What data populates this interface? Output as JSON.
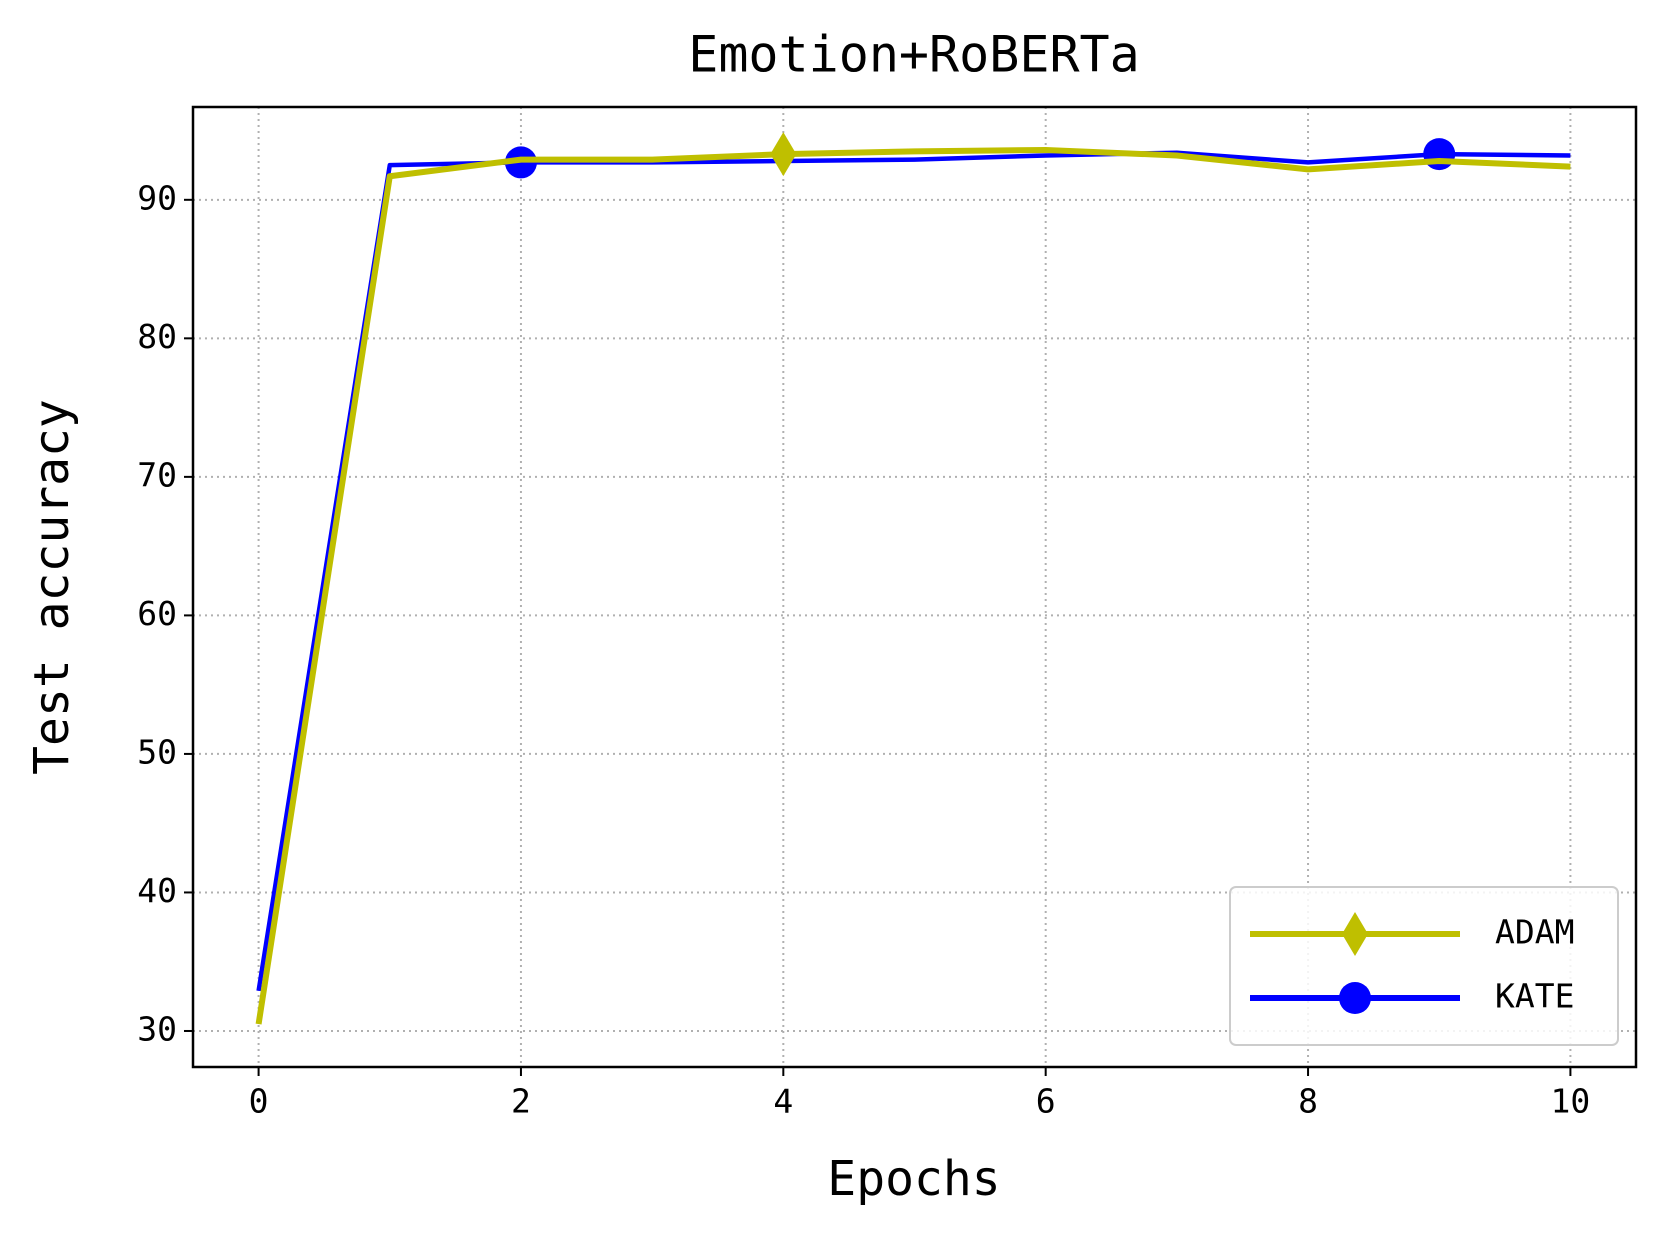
{
  "chart_data": {
    "type": "line",
    "title": "Emotion+RoBERTa",
    "x_label": "Epochs",
    "y_label": "Test accuracy",
    "x": [
      0,
      1,
      2,
      3,
      4,
      5,
      6,
      7,
      8,
      9,
      10
    ],
    "series": [
      {
        "name": "ADAM",
        "color": "#bfbf00",
        "marker": "diamond",
        "marker_indices": [
          4
        ],
        "values": [
          30.5,
          91.7,
          92.9,
          92.9,
          93.3,
          93.5,
          93.6,
          93.2,
          92.2,
          92.8,
          92.4
        ]
      },
      {
        "name": "KATE",
        "color": "#0000ff",
        "marker": "circle",
        "marker_indices": [
          2,
          9
        ],
        "values": [
          32.9,
          92.5,
          92.7,
          92.7,
          92.8,
          92.9,
          93.2,
          93.4,
          92.7,
          93.3,
          93.2
        ]
      }
    ],
    "xlim": [
      -0.5,
      10.5
    ],
    "ylim": [
      27.4,
      96.7
    ],
    "xticks": [
      0,
      2,
      4,
      6,
      8,
      10
    ],
    "yticks": [
      30,
      40,
      50,
      60,
      70,
      80,
      90
    ],
    "grid": true,
    "legend": "lower right"
  }
}
